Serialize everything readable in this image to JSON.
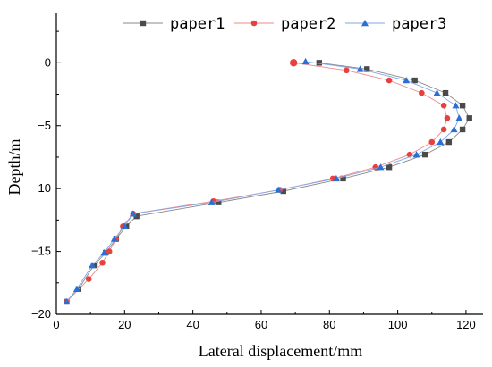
{
  "chart_data": {
    "type": "line",
    "xlabel": "Lateral displacement/mm",
    "ylabel": "Depth/m",
    "xlim": [
      0,
      125
    ],
    "ylim": [
      -20,
      4
    ],
    "xticks": [
      0,
      20,
      40,
      60,
      80,
      100,
      120
    ],
    "yticks": [
      0,
      -5,
      -10,
      -15,
      -20
    ],
    "grid": false,
    "legend_position": "top",
    "series": [
      {
        "name": "paper1",
        "color": "#4a4a4a",
        "line_color": "#8a8a8a",
        "marker": "square",
        "points": [
          [
            3,
            -19
          ],
          [
            6.5,
            -18
          ],
          [
            11,
            -16.1
          ],
          [
            14.5,
            -15.1
          ],
          [
            17.5,
            -14
          ],
          [
            20.5,
            -13
          ],
          [
            23.5,
            -12.2
          ],
          [
            47.5,
            -11.1
          ],
          [
            66.5,
            -10.2
          ],
          [
            84,
            -9.2
          ],
          [
            97.5,
            -8.3
          ],
          [
            108,
            -7.3
          ],
          [
            115,
            -6.3
          ],
          [
            119,
            -5.3
          ],
          [
            121,
            -4.4
          ],
          [
            119,
            -3.4
          ],
          [
            114,
            -2.4
          ],
          [
            105,
            -1.4
          ],
          [
            91,
            -0.5
          ],
          [
            77,
            0
          ]
        ]
      },
      {
        "name": "paper2",
        "color": "#e8403f",
        "line_color": "#ef8a8a",
        "marker": "circle",
        "points": [
          [
            3,
            -19
          ],
          [
            9.5,
            -17.2
          ],
          [
            13.5,
            -15.9
          ],
          [
            15.5,
            -15
          ],
          [
            17.5,
            -14
          ],
          [
            19.5,
            -13
          ],
          [
            22.5,
            -12
          ],
          [
            46,
            -11
          ],
          [
            65.5,
            -10.1
          ],
          [
            81,
            -9.2
          ],
          [
            93.5,
            -8.3
          ],
          [
            103.5,
            -7.3
          ],
          [
            110,
            -6.3
          ],
          [
            113.5,
            -5.3
          ],
          [
            114.5,
            -4.4
          ],
          [
            113.5,
            -3.4
          ],
          [
            107,
            -2.4
          ],
          [
            97.5,
            -1.4
          ],
          [
            85,
            -0.6
          ],
          [
            69.5,
            0
          ]
        ]
      },
      {
        "name": "paper3",
        "color": "#2a6fd6",
        "line_color": "#7fa7e8",
        "marker": "triangle",
        "points": [
          [
            3,
            -19
          ],
          [
            6,
            -18
          ],
          [
            10.5,
            -16.1
          ],
          [
            14,
            -15.1
          ],
          [
            17,
            -14
          ],
          [
            20,
            -13
          ],
          [
            22.5,
            -12
          ],
          [
            45.5,
            -11.1
          ],
          [
            65,
            -10.1
          ],
          [
            82,
            -9.2
          ],
          [
            95,
            -8.3
          ],
          [
            105.5,
            -7.3
          ],
          [
            112.5,
            -6.3
          ],
          [
            116.5,
            -5.3
          ],
          [
            118,
            -4.4
          ],
          [
            117,
            -3.4
          ],
          [
            111.5,
            -2.4
          ],
          [
            102.5,
            -1.4
          ],
          [
            89,
            -0.5
          ],
          [
            73,
            0.1
          ]
        ]
      }
    ]
  }
}
